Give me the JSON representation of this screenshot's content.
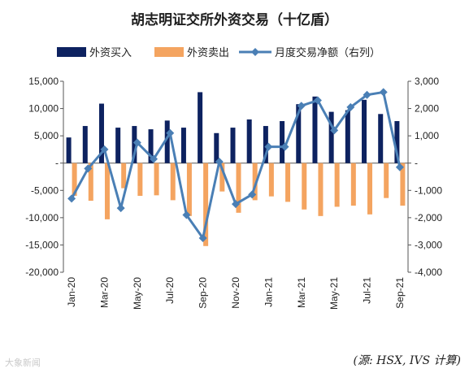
{
  "chart_data": {
    "type": "bar",
    "title": "胡志明证交所外资交易（十亿盾）",
    "source": "(源: HSX, IVS  计算)",
    "watermark": "大象新闻",
    "colors": {
      "buy": "#0d2260",
      "sell": "#f4a460",
      "net": "#4a7fb5"
    },
    "categories": [
      "Jan-20",
      "Feb-20",
      "Mar-20",
      "Apr-20",
      "May-20",
      "Jun-20",
      "Jul-20",
      "Aug-20",
      "Sep-20",
      "Oct-20",
      "Nov-20",
      "Dec-20",
      "Jan-21",
      "Feb-21",
      "Mar-21",
      "Apr-21",
      "May-21",
      "Jun-21",
      "Jul-21",
      "Aug-21",
      "Sep-21"
    ],
    "x_tick_labels": [
      "Jan-20",
      "Mar-20",
      "May-20",
      "Jul-20",
      "Sep-20",
      "Nov-20",
      "Jan-21",
      "Mar-21",
      "May-21",
      "Jul-21",
      "Sep-21"
    ],
    "series": [
      {
        "name": "外资买入",
        "axis": "left",
        "kind": "bar",
        "values": [
          4700,
          6800,
          10900,
          6500,
          6800,
          6200,
          7800,
          6500,
          13000,
          5500,
          6500,
          8000,
          6800,
          7700,
          10800,
          12200,
          9400,
          9700,
          11600,
          9000,
          7700
        ]
      },
      {
        "name": "外资卖出",
        "axis": "left",
        "kind": "bar",
        "values": [
          -6000,
          -6900,
          -10300,
          -4600,
          -6000,
          -5900,
          -6800,
          -9700,
          -15200,
          -5200,
          -9100,
          -6800,
          -6100,
          -7100,
          -8500,
          -9700,
          -8000,
          -7800,
          -9400,
          -6400,
          -7800
        ]
      },
      {
        "name": "月度交易净额（右列）",
        "axis": "right",
        "kind": "line",
        "values": [
          -1300,
          -200,
          500,
          -1650,
          750,
          150,
          1100,
          -1900,
          -2750,
          50,
          -1500,
          -1150,
          600,
          600,
          2100,
          2300,
          1200,
          2050,
          2500,
          2600,
          -150
        ]
      }
    ],
    "y_left": {
      "lim": [
        -20000,
        15000
      ],
      "step": 5000,
      "tick_labels": [
        "15,000",
        "10,000",
        "5,000",
        "-",
        "-5,000",
        "-10,000",
        "-15,000",
        "-20,000"
      ]
    },
    "y_right": {
      "lim": [
        -4000,
        3000
      ],
      "step": 1000,
      "tick_labels": [
        "3,000",
        "2,000",
        "1,000",
        "-",
        "-1,000",
        "-2,000",
        "-3,000",
        "-4,000"
      ]
    },
    "legend_position": "top"
  }
}
